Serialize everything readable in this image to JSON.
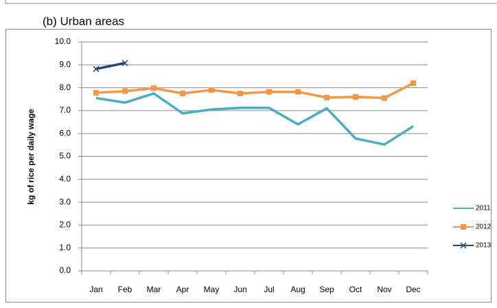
{
  "chart_data": {
    "type": "line",
    "title": "(b) Urban areas",
    "y_label": "kg of rice per daily wage",
    "categories": [
      "Jan",
      "Feb",
      "Mar",
      "Apr",
      "May",
      "Jun",
      "Jul",
      "Aug",
      "Sep",
      "Oct",
      "Nov",
      "Dec"
    ],
    "series": [
      {
        "name": "2011",
        "color": "#4bacc6",
        "marker": "none",
        "values": [
          7.55,
          7.35,
          7.75,
          6.88,
          7.05,
          7.12,
          7.12,
          6.4,
          7.1,
          5.78,
          5.52,
          6.32
        ]
      },
      {
        "name": "2012",
        "color": "#f79646",
        "marker": "square",
        "values": [
          7.78,
          7.85,
          7.98,
          7.75,
          7.9,
          7.75,
          7.82,
          7.82,
          7.57,
          7.6,
          7.55,
          8.2
        ]
      },
      {
        "name": "2013",
        "color": "#1f497d",
        "marker": "x",
        "values": [
          8.82,
          9.08,
          null,
          null,
          null,
          null,
          null,
          null,
          null,
          null,
          null,
          null
        ]
      }
    ],
    "ylim": [
      0,
      10
    ],
    "yticks": [
      {
        "value": 0,
        "label": "0.0"
      },
      {
        "value": 1,
        "label": "1.0"
      },
      {
        "value": 2,
        "label": "2.0"
      },
      {
        "value": 3,
        "label": "3.0"
      },
      {
        "value": 4,
        "label": "4.0"
      },
      {
        "value": 5,
        "label": "5.0"
      },
      {
        "value": 6,
        "label": "6.0"
      },
      {
        "value": 7,
        "label": "7.0"
      },
      {
        "value": 8,
        "label": "8.0"
      },
      {
        "value": 9,
        "label": "9.0"
      },
      {
        "value": 10,
        "label": "10.0"
      }
    ],
    "grid": true,
    "legend": "right"
  }
}
